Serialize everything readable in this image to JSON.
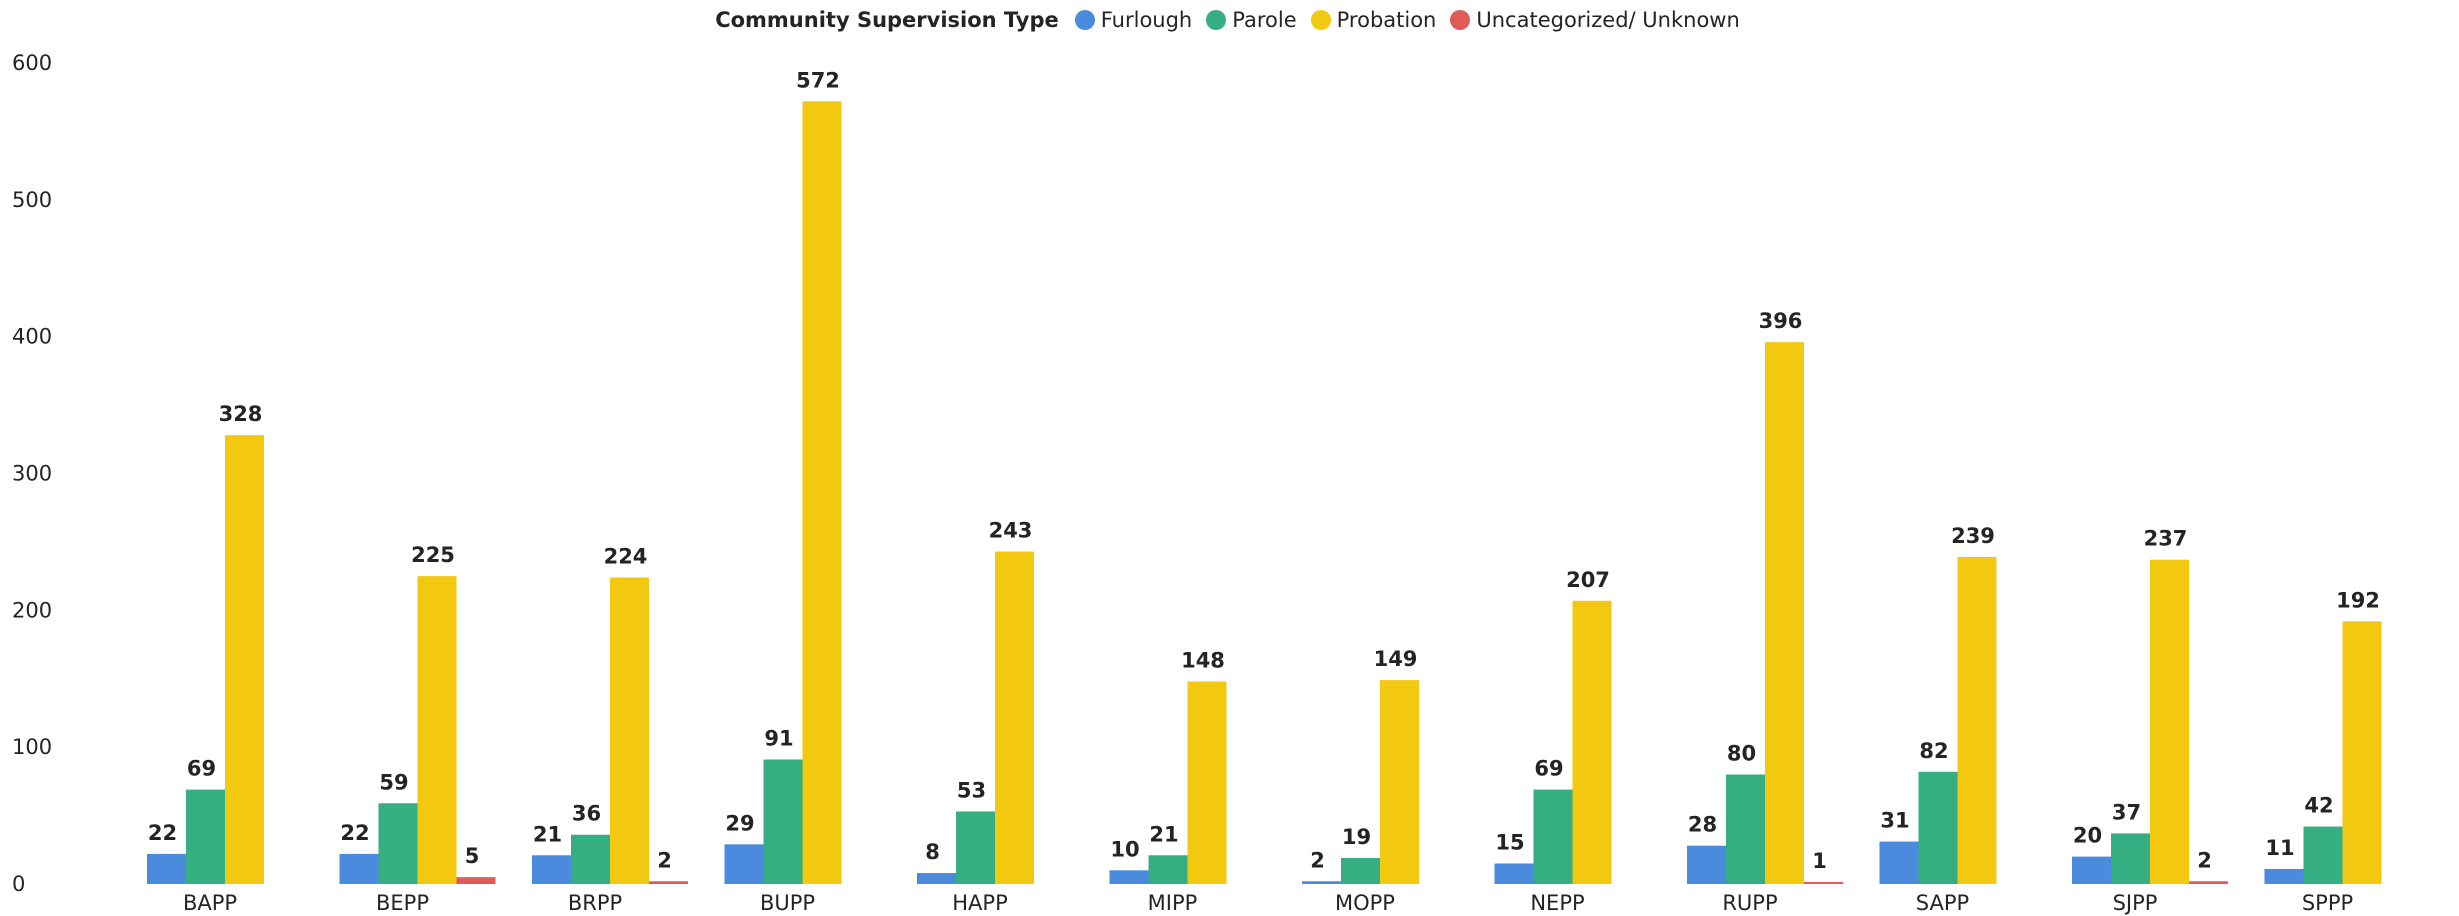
{
  "chart_data": {
    "type": "bar",
    "legend_title": "Community Supervision Type",
    "legend_position": "top-center",
    "categories": [
      "BAPP",
      "BEPP",
      "BRPP",
      "BUPP",
      "HAPP",
      "MIPP",
      "MOPP",
      "NEPP",
      "RUPP",
      "SAPP",
      "SJPP",
      "SPPP"
    ],
    "series": [
      {
        "name": "Furlough",
        "color": "#4A8BDD",
        "values": [
          22,
          22,
          21,
          29,
          8,
          10,
          2,
          15,
          28,
          31,
          20,
          11
        ]
      },
      {
        "name": "Parole",
        "color": "#35AE82",
        "values": [
          69,
          59,
          36,
          91,
          53,
          21,
          19,
          69,
          80,
          82,
          37,
          42
        ]
      },
      {
        "name": "Probation",
        "color": "#F2C811",
        "values": [
          328,
          225,
          224,
          572,
          243,
          148,
          149,
          207,
          396,
          239,
          237,
          192
        ]
      },
      {
        "name": "Uncategorized/ Unknown",
        "color": "#DE5B57",
        "values": [
          null,
          5,
          2,
          null,
          null,
          null,
          null,
          null,
          1,
          null,
          2,
          null
        ]
      }
    ],
    "y_ticks": [
      "0",
      "100",
      "200",
      "300",
      "400",
      "500",
      "600"
    ],
    "ylim": [
      0,
      600
    ],
    "grid": false,
    "data_labels": true
  }
}
